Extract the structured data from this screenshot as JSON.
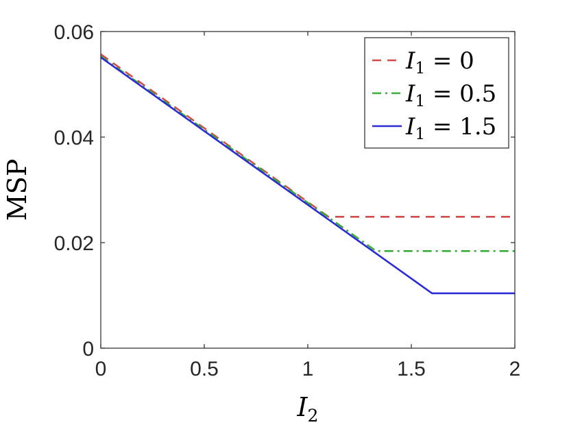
{
  "chart_data": {
    "type": "line",
    "xlabel": "I_2",
    "xlabel_main": "I",
    "xlabel_sub": "2",
    "ylabel": "MSP",
    "xlim": [
      0,
      2
    ],
    "ylim": [
      0,
      0.06
    ],
    "xticks": [
      0,
      0.5,
      1,
      1.5,
      2
    ],
    "xtick_labels": [
      "0",
      "0.5",
      "1",
      "1.5",
      "2"
    ],
    "yticks": [
      0,
      0.02,
      0.04,
      0.06
    ],
    "ytick_labels": [
      "0",
      "0.02",
      "0.04",
      "0.06"
    ],
    "grid": false,
    "legend_position": "top-right",
    "series": [
      {
        "name": "I_1 = 0",
        "legend_main": "I",
        "legend_sub": "1",
        "legend_rest": " = 0",
        "color": "#d24b4b",
        "style": "dashed",
        "x": [
          0,
          1.1,
          2
        ],
        "y": [
          0.0557,
          0.0249,
          0.0249
        ]
      },
      {
        "name": "I_1 = 0.5",
        "legend_main": "I",
        "legend_sub": "1",
        "legend_rest": " = 0.5",
        "color": "#3aae3a",
        "style": "dashdot",
        "x": [
          0,
          1.33,
          2
        ],
        "y": [
          0.0553,
          0.0184,
          0.0184
        ]
      },
      {
        "name": "I_1 = 1.5",
        "legend_main": "I",
        "legend_sub": "1",
        "legend_rest": " = 1.5",
        "color": "#2b2bd6",
        "style": "solid",
        "x": [
          0,
          1.6,
          2
        ],
        "y": [
          0.0551,
          0.0104,
          0.0104
        ]
      }
    ]
  }
}
